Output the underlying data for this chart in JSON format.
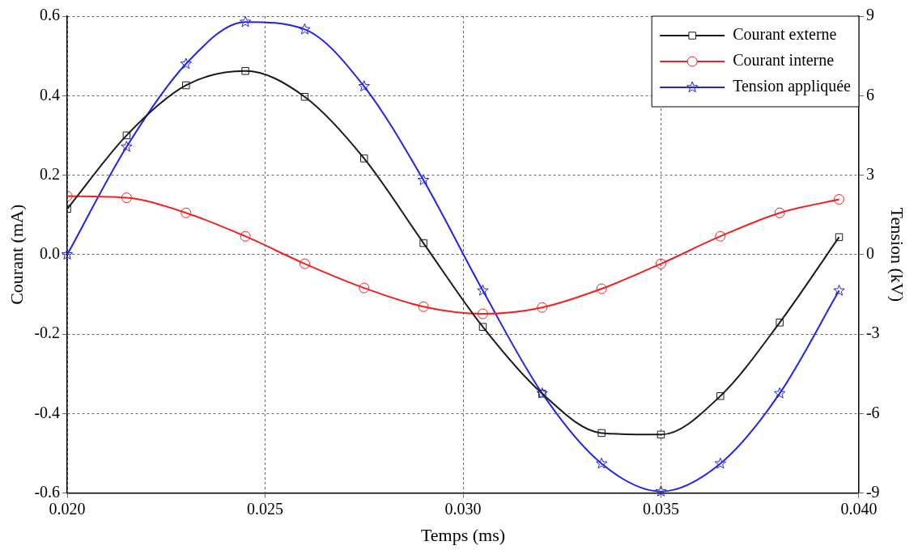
{
  "chart_data": {
    "type": "line",
    "xlabel": "Temps (ms)",
    "ylabel": "Courant (mA)",
    "y2label": "Tension (kV)",
    "xlim": [
      0.02,
      0.04
    ],
    "xticks": [
      {
        "value": 0.02,
        "label": "0.020"
      },
      {
        "value": 0.025,
        "label": "0.025"
      },
      {
        "value": 0.03,
        "label": "0.030"
      },
      {
        "value": 0.035,
        "label": "0.035"
      },
      {
        "value": 0.04,
        "label": "0.040"
      }
    ],
    "ylim": [
      -0.6,
      0.6
    ],
    "yticks": [
      {
        "value": -0.6,
        "label": "-0.6"
      },
      {
        "value": -0.4,
        "label": "-0.4"
      },
      {
        "value": -0.2,
        "label": "-0.2"
      },
      {
        "value": 0,
        "label": "0.0"
      },
      {
        "value": 0.2,
        "label": "0.2"
      },
      {
        "value": 0.4,
        "label": "0.4"
      },
      {
        "value": 0.6,
        "label": "0.6"
      }
    ],
    "y2lim": [
      -9,
      9
    ],
    "y2ticks": [
      -9,
      -6,
      -3,
      0,
      3,
      6,
      9
    ],
    "grid": true,
    "legend": "top right",
    "line_style": "solid",
    "series": [
      {
        "name": "Courant externe",
        "color": "#1a1a1a",
        "marker": "square",
        "x": [
          0.02,
          0.0215,
          0.023,
          0.0245,
          0.026,
          0.0275,
          0.029,
          0.0305,
          0.032,
          0.0335,
          0.035,
          0.0365,
          0.038,
          0.0395
        ],
        "values": [
          0.115,
          0.3,
          0.426,
          0.462,
          0.397,
          0.242,
          0.029,
          -0.182,
          -0.35,
          -0.449,
          -0.453,
          -0.356,
          -0.171,
          0.044
        ]
      },
      {
        "name": "Courant interne",
        "color": "#ee2222",
        "marker": "circle",
        "x": [
          0.02,
          0.0215,
          0.023,
          0.0245,
          0.026,
          0.0275,
          0.029,
          0.0305,
          0.032,
          0.0335,
          0.035,
          0.0365,
          0.038,
          0.0395
        ],
        "values": [
          0.147,
          0.143,
          0.105,
          0.046,
          -0.023,
          -0.084,
          -0.131,
          -0.149,
          -0.133,
          -0.086,
          -0.023,
          0.046,
          0.105,
          0.139
        ]
      },
      {
        "name": "Tension appliquée",
        "color": "#2222ee",
        "marker": "star",
        "axis": "y2",
        "x": [
          0.02,
          0.0215,
          0.023,
          0.0245,
          0.026,
          0.0275,
          0.029,
          0.0305,
          0.032,
          0.0335,
          0.035,
          0.0365,
          0.038,
          0.0395
        ],
        "values": [
          0,
          4.07,
          7.2,
          8.78,
          8.5,
          6.35,
          2.81,
          -1.36,
          -5.24,
          -7.89,
          -8.94,
          -7.89,
          -5.24,
          -1.36
        ]
      }
    ]
  }
}
